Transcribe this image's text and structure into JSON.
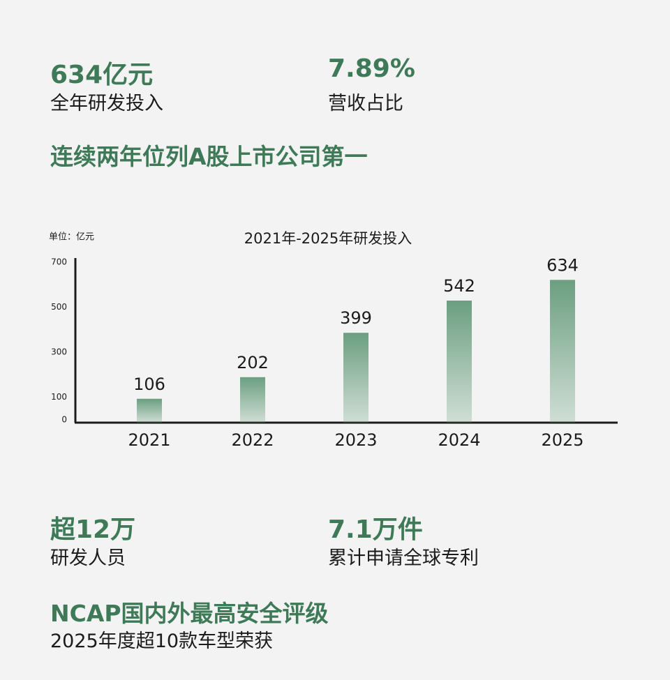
{
  "top_stats": [
    {
      "value": "634亿元",
      "label": "全年研发投入"
    },
    {
      "value": "7.89%",
      "label": "营收占比"
    }
  ],
  "headline_1": "连续两年位列A股上市公司第一",
  "chart_data": {
    "type": "bar",
    "title": "2021年-2025年研发投入",
    "y_label": "单位：亿元",
    "categories": [
      "2021",
      "2022",
      "2023",
      "2024",
      "2025"
    ],
    "values": [
      106,
      202,
      399,
      542,
      634
    ],
    "color": "#6b9f80",
    "ylim": [
      0,
      700
    ],
    "yticks": [
      0,
      100,
      300,
      500,
      700
    ],
    "grid": false
  },
  "bottom_stats": [
    {
      "value": "超12万",
      "label": "研发人员"
    },
    {
      "value": "7.1万件",
      "label": "累计申请全球专利"
    }
  ],
  "headline_2": "NCAP国内外最高安全评级",
  "subline_2": "2025年度超10款车型荣获"
}
